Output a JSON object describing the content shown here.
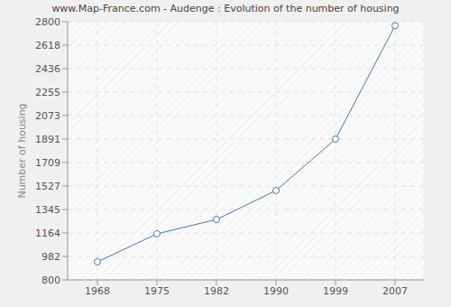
{
  "chart_data": {
    "type": "line",
    "title": "www.Map-France.com - Audenge : Evolution of the number of housing",
    "y_label": "Number of housing",
    "categories": [
      "1968",
      "1975",
      "1982",
      "1990",
      "1999",
      "2007"
    ],
    "values": [
      940,
      1157,
      1268,
      1492,
      1891,
      2769
    ],
    "color": "#4a76a8",
    "marker": "circle",
    "ylim": [
      800,
      2800
    ],
    "yticks": [
      800,
      982,
      1164,
      1345,
      1527,
      1709,
      1891,
      2073,
      2255,
      2436,
      2618,
      2800
    ],
    "grid": true
  }
}
